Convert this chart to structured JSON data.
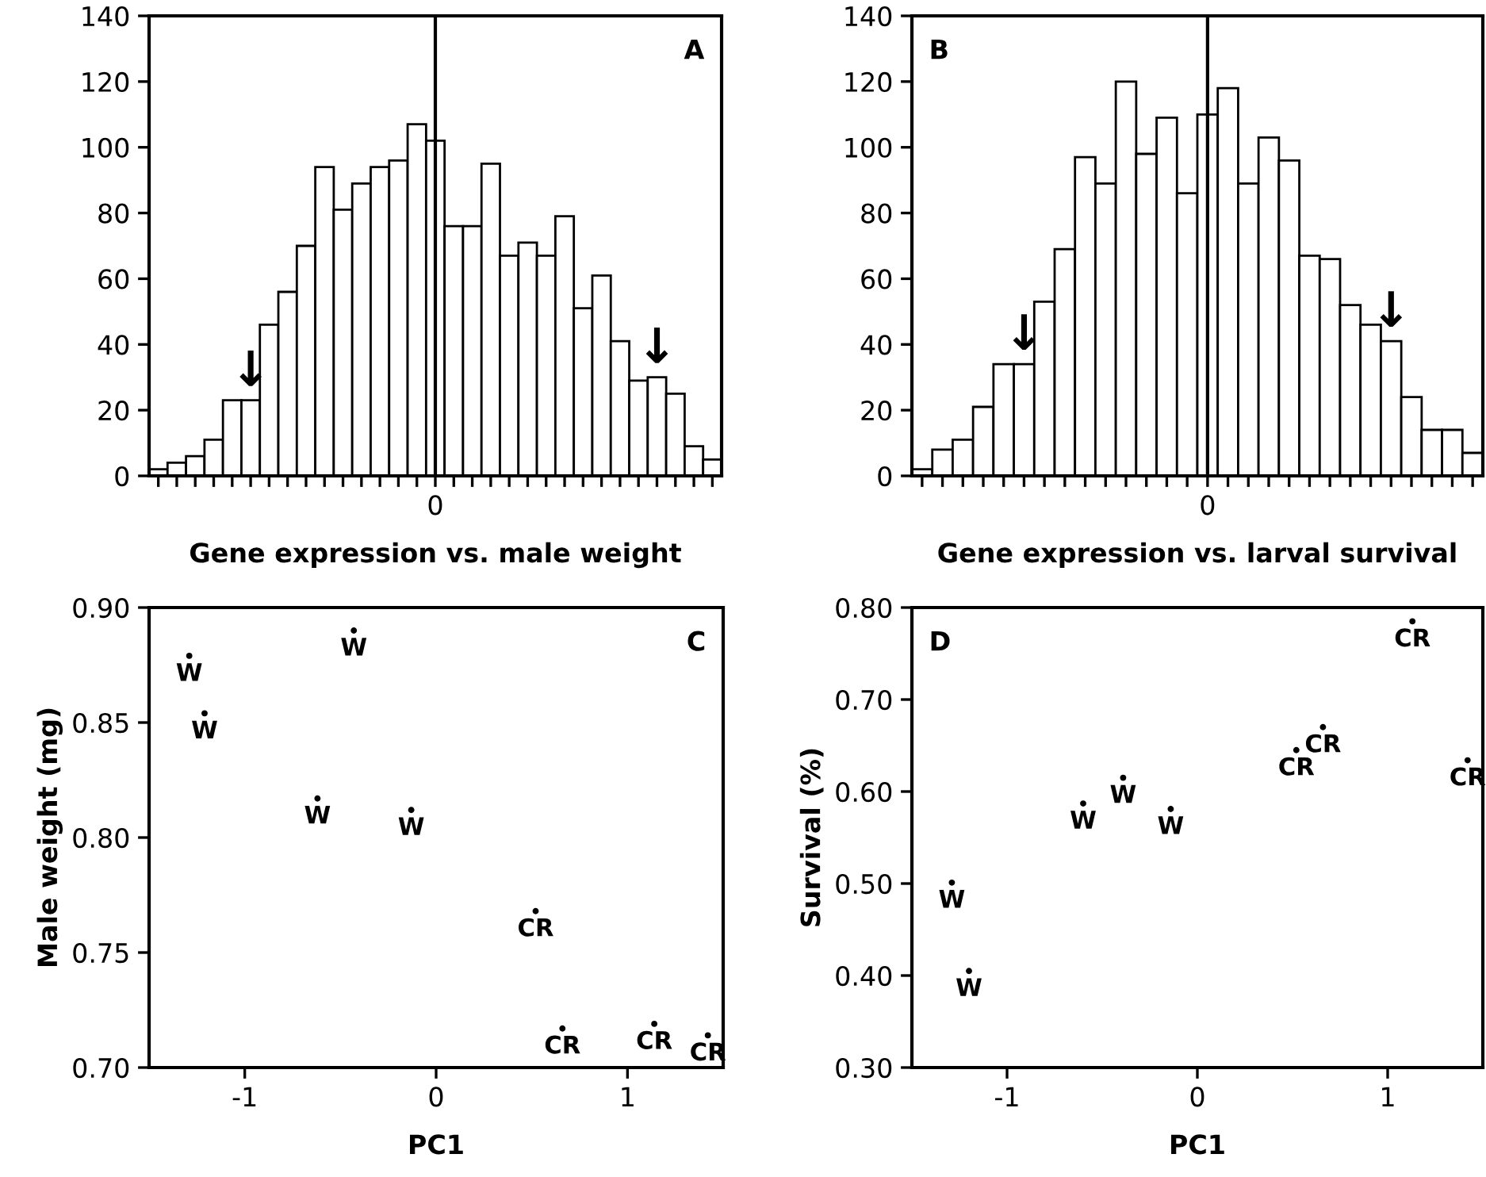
{
  "chart_data": [
    {
      "type": "bar",
      "xlabel": "Gene expression vs. male weight",
      "annotations": [
        "A"
      ],
      "categories": [
        null,
        null,
        null,
        null,
        null,
        null,
        null,
        null,
        null,
        null,
        null,
        null,
        null,
        null,
        null,
        "0",
        null,
        null,
        null,
        null,
        null,
        null,
        null,
        null,
        null,
        null,
        null,
        null,
        null,
        null,
        null
      ],
      "values": [
        2,
        4,
        6,
        11,
        23,
        23,
        46,
        56,
        70,
        94,
        81,
        89,
        94,
        96,
        107,
        102,
        76,
        76,
        95,
        67,
        71,
        67,
        79,
        51,
        61,
        41,
        29,
        30,
        25,
        9,
        5
      ],
      "value_labels": [
        null,
        null,
        null,
        null,
        null,
        "↓",
        null,
        null,
        null,
        null,
        null,
        null,
        null,
        null,
        null,
        null,
        null,
        null,
        null,
        null,
        null,
        null,
        null,
        null,
        null,
        null,
        null,
        "↓",
        null,
        null,
        null
      ],
      "color": "#ffffff",
      "ylim": [
        0,
        140
      ],
      "yticks": [
        0,
        20,
        40,
        60,
        80,
        100,
        120,
        140
      ],
      "ref_lines": [
        {
          "axis": "x",
          "value": "0",
          "color": "#000000"
        }
      ]
    },
    {
      "type": "bar",
      "xlabel": "Gene expression vs. larval survival",
      "annotations": [
        "B"
      ],
      "categories": [
        null,
        null,
        null,
        null,
        null,
        null,
        null,
        null,
        null,
        null,
        null,
        null,
        null,
        null,
        "0",
        null,
        null,
        null,
        null,
        null,
        null,
        null,
        null,
        null,
        null,
        null,
        null,
        null
      ],
      "values": [
        2,
        8,
        11,
        21,
        34,
        34,
        53,
        69,
        97,
        89,
        120,
        98,
        109,
        86,
        110,
        118,
        89,
        103,
        96,
        67,
        66,
        52,
        46,
        41,
        24,
        14,
        14,
        7
      ],
      "value_labels": [
        null,
        null,
        null,
        null,
        null,
        "↓",
        null,
        null,
        null,
        null,
        null,
        null,
        null,
        null,
        null,
        null,
        null,
        null,
        null,
        null,
        null,
        null,
        null,
        "↓",
        null,
        null,
        null,
        null
      ],
      "color": "#ffffff",
      "ylim": [
        0,
        140
      ],
      "yticks": [
        0,
        20,
        40,
        60,
        80,
        100,
        120,
        140
      ],
      "ref_lines": [
        {
          "axis": "x",
          "value": "0",
          "color": "#000000"
        }
      ]
    },
    {
      "type": "scatter",
      "xlabel": "PC1",
      "ylabel": "Male weight (mg)",
      "annotations": [
        "C"
      ],
      "marker": "circle",
      "xlim": [
        -1.5,
        1.5
      ],
      "xticks": [
        -1,
        0,
        1
      ],
      "ylim": [
        0.7,
        0.9
      ],
      "yticks": [
        {
          "value": 0.7,
          "label": "0.70"
        },
        {
          "value": 0.75,
          "label": "0.75"
        },
        {
          "value": 0.8,
          "label": "0.80"
        },
        {
          "value": 0.85,
          "label": "0.85"
        },
        {
          "value": 0.9,
          "label": "0.90"
        }
      ],
      "series": [
        {
          "name": "W",
          "color": "#000000",
          "x": [
            -1.29,
            -1.21,
            -0.43,
            -0.62,
            -0.13
          ],
          "values": [
            0.879,
            0.854,
            0.89,
            0.817,
            0.812
          ]
        },
        {
          "name": "CR",
          "color": "#000000",
          "x": [
            0.52,
            0.66,
            1.14,
            1.42
          ],
          "values": [
            0.768,
            0.717,
            0.719,
            0.714
          ]
        }
      ]
    },
    {
      "type": "scatter",
      "xlabel": "PC1",
      "ylabel": "Survival (%)",
      "annotations": [
        "D"
      ],
      "marker": "circle",
      "xlim": [
        -1.5,
        1.5
      ],
      "xticks": [
        -1,
        0,
        1
      ],
      "ylim": [
        0.3,
        0.8
      ],
      "yticks": [
        {
          "value": 0.3,
          "label": "0.30"
        },
        {
          "value": 0.4,
          "label": "0.40"
        },
        {
          "value": 0.5,
          "label": "0.50"
        },
        {
          "value": 0.6,
          "label": "0.60"
        },
        {
          "value": 0.7,
          "label": "0.70"
        },
        {
          "value": 0.8,
          "label": "0.80"
        }
      ],
      "series": [
        {
          "name": "W",
          "color": "#000000",
          "x": [
            -1.29,
            -1.2,
            -0.6,
            -0.39,
            -0.14
          ],
          "values": [
            0.501,
            0.405,
            0.587,
            0.615,
            0.581
          ]
        },
        {
          "name": "CR",
          "color": "#000000",
          "x": [
            0.66,
            0.52,
            1.13,
            1.42
          ],
          "values": [
            0.67,
            0.645,
            0.785,
            0.634
          ]
        }
      ]
    }
  ]
}
